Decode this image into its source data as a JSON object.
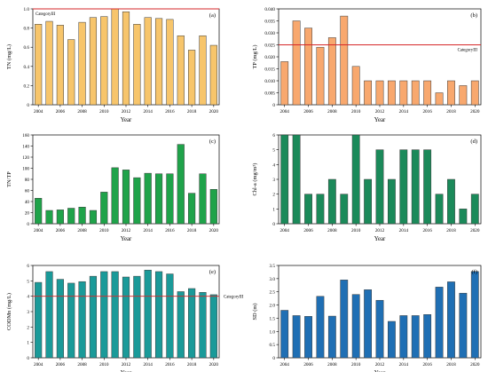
{
  "chart_data": [
    {
      "type": "bar",
      "panel_label": "(a)",
      "ylabel": "TN (mg/L)",
      "xlabel": "Year",
      "bar_color": "#f7c56b",
      "ylim": [
        0,
        1.0
      ],
      "yticks": [
        "0",
        "0.2",
        "0.4",
        "0.6",
        "0.8",
        "1.0"
      ],
      "ytick_values": [
        0,
        0.2,
        0.4,
        0.6,
        0.8,
        1.0
      ],
      "categories": [
        "2004",
        "2005",
        "2006",
        "2007",
        "2008",
        "2009",
        "2010",
        "2011",
        "2012",
        "2013",
        "2014",
        "2015",
        "2016",
        "2017",
        "2018",
        "2019",
        "2020"
      ],
      "xtick_labels": [
        "2004",
        "2006",
        "2008",
        "2010",
        "2012",
        "2014",
        "2016",
        "2018",
        "2020"
      ],
      "values": [
        0.84,
        0.87,
        0.83,
        0.68,
        0.86,
        0.91,
        0.92,
        1.0,
        0.97,
        0.84,
        0.91,
        0.9,
        0.89,
        0.72,
        0.57,
        0.72,
        0.62
      ],
      "reference_line": {
        "value": 1.0,
        "label": "CategoryIII",
        "color": "#d62728"
      }
    },
    {
      "type": "bar",
      "panel_label": "(b)",
      "ylabel": "TP (mg/L)",
      "xlabel": "Year",
      "bar_color": "#f8a86e",
      "ylim": [
        0,
        0.04
      ],
      "yticks": [
        "0",
        "0.005",
        "0.010",
        "0.015",
        "0.020",
        "0.025",
        "0.030",
        "0.035",
        "0.040"
      ],
      "ytick_values": [
        0,
        0.005,
        0.01,
        0.015,
        0.02,
        0.025,
        0.03,
        0.035,
        0.04
      ],
      "categories": [
        "2004",
        "2005",
        "2006",
        "2007",
        "2008",
        "2009",
        "2010",
        "2011",
        "2012",
        "2013",
        "2014",
        "2015",
        "2016",
        "2017",
        "2018",
        "2019",
        "2020"
      ],
      "xtick_labels": [
        "2004",
        "2006",
        "2008",
        "2010",
        "2012",
        "2014",
        "2016",
        "2018",
        "2020"
      ],
      "values": [
        0.018,
        0.035,
        0.032,
        0.024,
        0.028,
        0.037,
        0.016,
        0.01,
        0.01,
        0.01,
        0.01,
        0.01,
        0.01,
        0.005,
        0.01,
        0.008,
        0.01
      ],
      "reference_line": {
        "value": 0.025,
        "label": "CategoryIII",
        "color": "#d62728"
      }
    },
    {
      "type": "bar",
      "panel_label": "(c)",
      "ylabel": "TN/TP",
      "xlabel": "Year",
      "bar_color": "#1fa34a",
      "ylim": [
        0,
        160
      ],
      "yticks": [
        "0",
        "20",
        "40",
        "60",
        "80",
        "100",
        "120",
        "140",
        "160"
      ],
      "ytick_values": [
        0,
        20,
        40,
        60,
        80,
        100,
        120,
        140,
        160
      ],
      "categories": [
        "2004",
        "2005",
        "2006",
        "2007",
        "2008",
        "2009",
        "2010",
        "2011",
        "2012",
        "2013",
        "2014",
        "2015",
        "2016",
        "2017",
        "2018",
        "2019",
        "2020"
      ],
      "xtick_labels": [
        "2004",
        "2006",
        "2008",
        "2010",
        "2012",
        "2014",
        "2016",
        "2018",
        "2020"
      ],
      "values": [
        46,
        24,
        25,
        28,
        30,
        24,
        57,
        101,
        97,
        83,
        91,
        90,
        90,
        143,
        55,
        90,
        62
      ]
    },
    {
      "type": "bar",
      "panel_label": "(d)",
      "ylabel": "Chl-a (mg/m³)",
      "xlabel": "Year",
      "bar_color": "#1b8a5a",
      "ylim": [
        0,
        6
      ],
      "yticks": [
        "0",
        "1",
        "2",
        "3",
        "4",
        "5",
        "6"
      ],
      "ytick_values": [
        0,
        1,
        2,
        3,
        4,
        5,
        6
      ],
      "categories": [
        "2004",
        "2005",
        "2006",
        "2007",
        "2008",
        "2009",
        "2010",
        "2011",
        "2012",
        "2013",
        "2014",
        "2015",
        "2016",
        "2017",
        "2018",
        "2019",
        "2020"
      ],
      "xtick_labels": [
        "2004",
        "2006",
        "2008",
        "2010",
        "2012",
        "2014",
        "2016",
        "2018",
        "2020"
      ],
      "values": [
        6,
        6,
        2,
        2,
        3,
        2,
        6,
        3,
        5,
        3,
        5,
        5,
        5,
        2,
        3,
        1,
        2
      ]
    },
    {
      "type": "bar",
      "panel_label": "(e)",
      "ylabel": "CODMn (mg/L)",
      "xlabel": "Year",
      "bar_color": "#1a9a99",
      "ylim": [
        0,
        6
      ],
      "yticks": [
        "0",
        "1",
        "2",
        "3",
        "4",
        "5",
        "6"
      ],
      "ytick_values": [
        0,
        1,
        2,
        3,
        4,
        5,
        6
      ],
      "categories": [
        "2004",
        "2005",
        "2006",
        "2007",
        "2008",
        "2009",
        "2010",
        "2011",
        "2012",
        "2013",
        "2014",
        "2015",
        "2016",
        "2017",
        "2018",
        "2019",
        "2020"
      ],
      "xtick_labels": [
        "2004",
        "2006",
        "2008",
        "2010",
        "2012",
        "2014",
        "2016",
        "2018",
        "2020"
      ],
      "values": [
        4.9,
        5.6,
        5.1,
        4.85,
        4.95,
        5.3,
        5.6,
        5.6,
        5.25,
        5.3,
        5.7,
        5.6,
        5.45,
        4.3,
        4.5,
        4.25,
        4.1
      ],
      "reference_line": {
        "value": 4,
        "label": "CategoryIII",
        "color": "#d62728"
      }
    },
    {
      "type": "bar",
      "panel_label": "(f)",
      "ylabel": "SD (m)",
      "xlabel": "Year",
      "bar_color": "#1f6fb4",
      "ylim": [
        0,
        3.5
      ],
      "yticks": [
        "0",
        "0.5",
        "1.0",
        "1.5",
        "2.0",
        "2.5",
        "3.0",
        "3.5"
      ],
      "ytick_values": [
        0,
        0.5,
        1.0,
        1.5,
        2.0,
        2.5,
        3.0,
        3.5
      ],
      "categories": [
        "2004",
        "2005",
        "2006",
        "2007",
        "2008",
        "2009",
        "2010",
        "2011",
        "2012",
        "2013",
        "2014",
        "2015",
        "2016",
        "2017",
        "2018",
        "2019",
        "2020"
      ],
      "xtick_labels": [
        "2004",
        "2006",
        "2008",
        "2010",
        "2012",
        "2014",
        "2016",
        "2018",
        "2020"
      ],
      "values": [
        1.8,
        1.6,
        1.57,
        2.33,
        1.58,
        2.95,
        2.4,
        2.58,
        2.18,
        1.38,
        1.6,
        1.6,
        1.64,
        2.68,
        2.88,
        2.45,
        3.27
      ]
    }
  ]
}
